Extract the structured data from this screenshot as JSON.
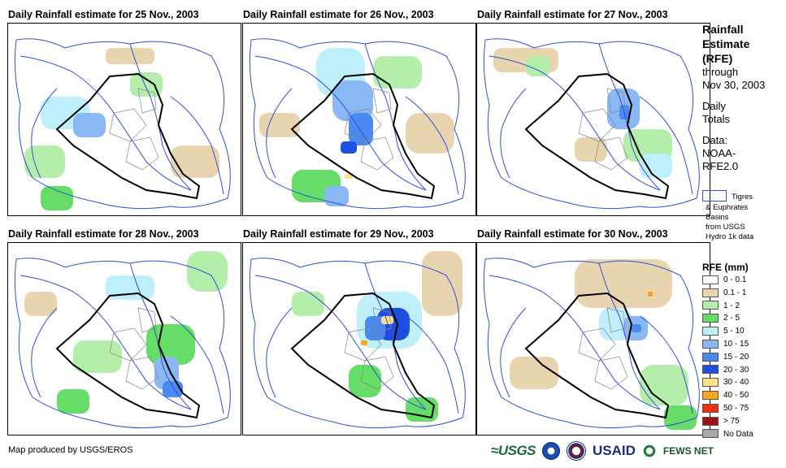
{
  "panels": [
    {
      "title": "Daily Rainfall estimate for 25 Nov., 2003"
    },
    {
      "title": "Daily Rainfall estimate for 26 Nov., 2003"
    },
    {
      "title": "Daily Rainfall estimate for 27 Nov., 2003"
    },
    {
      "title": "Daily Rainfall estimate for 28 Nov., 2003"
    },
    {
      "title": "Daily Rainfall estimate for 29 Nov., 2003"
    },
    {
      "title": "Daily Rainfall estimate for 30 Nov., 2003"
    }
  ],
  "side": {
    "line1": "Rainfall",
    "line2": "Estimate",
    "line3": "(RFE)",
    "line4": "through",
    "line5": "Nov 30, 2003",
    "line6": "Daily",
    "line7": "Totals",
    "line8": "Data:",
    "line9": "NOAA-",
    "line10": "RFE2.0",
    "basin_l1": "Tigres",
    "basin_l2": "& Euphrates",
    "basin_l3": "Basins",
    "basin_l4": "from USGS",
    "basin_l5": "Hydro 1k data"
  },
  "legend": {
    "title": "RFE (mm)",
    "items": [
      {
        "label": "0 - 0.1",
        "color": "#ffffff"
      },
      {
        "label": "0.1 - 1",
        "color": "#e8d5b0"
      },
      {
        "label": "1 - 2",
        "color": "#b5eeaa"
      },
      {
        "label": "2 - 5",
        "color": "#66dd66"
      },
      {
        "label": "5 - 10",
        "color": "#bfeffa"
      },
      {
        "label": "10 - 15",
        "color": "#8ab8f4"
      },
      {
        "label": "15 - 20",
        "color": "#4a8af0"
      },
      {
        "label": "20 - 30",
        "color": "#1f4fe0"
      },
      {
        "label": "30 - 40",
        "color": "#fce08a"
      },
      {
        "label": "40 - 50",
        "color": "#f5a623"
      },
      {
        "label": "50 - 75",
        "color": "#f03010"
      },
      {
        "label": "> 75",
        "color": "#a01010"
      },
      {
        "label": "No Data",
        "color": "#a8a8a8"
      }
    ]
  },
  "footer": "Map produced by USGS/EROS",
  "logos": {
    "usgs": "≈USGS",
    "usaid": "USAID",
    "fews": "FEWS NET"
  }
}
